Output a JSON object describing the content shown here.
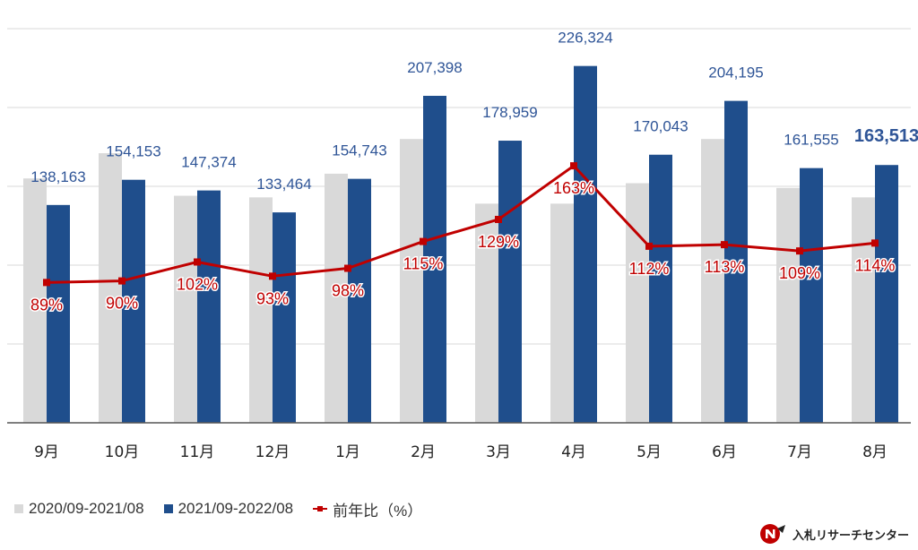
{
  "colors": {
    "series_2020": "#d9d9d9",
    "series_2021": "#1f4e8c",
    "yoy": "#c00000",
    "grid": "#d9d9d9",
    "axis": "#555555",
    "value_label": "#2f5597"
  },
  "legend": {
    "series_2020": "2020/09-2021/08",
    "series_2021": "2021/09-2022/08",
    "yoy": "前年比（%）"
  },
  "logo": {
    "text": "入札リサーチセンター",
    "icon": "n-arrow-logo-icon"
  },
  "chart_data": {
    "type": "bar",
    "categories": [
      "9月",
      "10月",
      "11月",
      "12月",
      "1月",
      "2月",
      "3月",
      "4月",
      "5月",
      "6月",
      "7月",
      "8月"
    ],
    "ylim": [
      0,
      250000
    ],
    "grid": true,
    "legend_position": "bottom-left",
    "series": [
      {
        "name": "2020/09-2021/08",
        "values": [
          155000,
          171000,
          144000,
          143000,
          158000,
          180000,
          139000,
          139000,
          152000,
          180000,
          149000,
          143000
        ]
      },
      {
        "name": "2021/09-2022/08",
        "values": [
          138163,
          154153,
          147374,
          133464,
          154743,
          207398,
          178959,
          226324,
          170043,
          204195,
          161555,
          163513
        ],
        "data_labels": [
          "138,163",
          "154,153",
          "147,374",
          "133,464",
          "154,743",
          "207,398",
          "178,959",
          "226,324",
          "170,043",
          "204,195",
          "161,555",
          "163,513"
        ]
      }
    ],
    "line_series": {
      "name": "前年比（%）",
      "values": [
        89,
        90,
        102,
        93,
        98,
        115,
        129,
        163,
        112,
        113,
        109,
        114
      ],
      "data_labels": [
        "89%",
        "90%",
        "102%",
        "93%",
        "98%",
        "115%",
        "129%",
        "163%",
        "112%",
        "113%",
        "109%",
        "114%"
      ],
      "ylim": [
        0,
        250
      ]
    },
    "highlighted_label_index": 11
  }
}
